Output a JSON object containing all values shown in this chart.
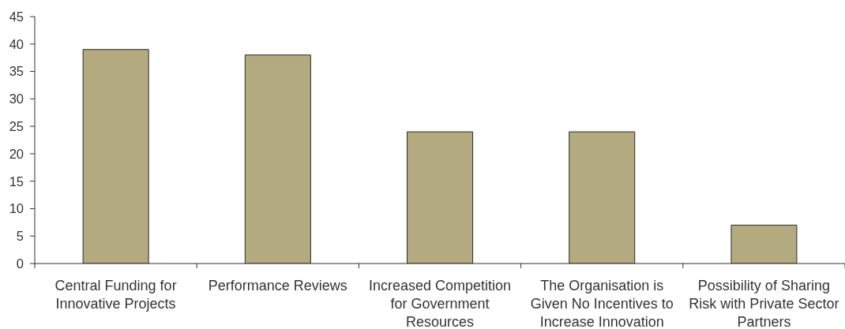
{
  "chart_data": {
    "type": "bar",
    "categories": [
      "Central Funding for Innovative Projects",
      "Performance Reviews",
      "Increased Competition for Government Resources",
      "The Organisation is Given No Incentives to Increase Innovation",
      "Possibility of Sharing Risk with Private Sector Partners"
    ],
    "values": [
      39,
      38,
      24,
      24,
      7
    ],
    "color": "#b3aa80",
    "ylim": [
      0,
      45
    ],
    "yticks": [
      0,
      5,
      10,
      15,
      20,
      25,
      30,
      35,
      40,
      45
    ]
  }
}
